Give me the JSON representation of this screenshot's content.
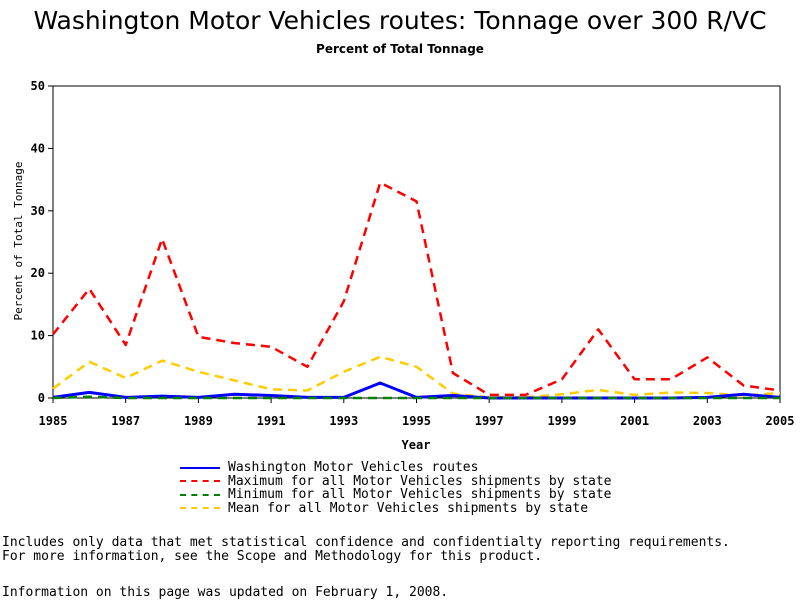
{
  "chart_data": {
    "type": "line",
    "title": "Washington Motor Vehicles routes: Tonnage over 300 R/VC",
    "subtitle": "Percent of Total Tonnage",
    "xlabel": "Year",
    "ylabel": "Percent of Total Tonnage",
    "xlim": [
      1985,
      2005
    ],
    "ylim": [
      0,
      50
    ],
    "x_ticks": [
      "1985",
      "1987",
      "1989",
      "1991",
      "1993",
      "1995",
      "1997",
      "1999",
      "2001",
      "2003",
      "2005"
    ],
    "y_ticks": [
      "0",
      "10",
      "20",
      "30",
      "40",
      "50"
    ],
    "x": [
      1985,
      1986,
      1987,
      1988,
      1989,
      1990,
      1991,
      1992,
      1993,
      1994,
      1995,
      1996,
      1997,
      1998,
      1999,
      2000,
      2001,
      2002,
      2003,
      2004,
      2005
    ],
    "grid": false,
    "legend_position": "bottom",
    "series": [
      {
        "name": "Washington Motor Vehicles routes",
        "color": "#0000ff",
        "style": "solid",
        "values": [
          0.1,
          0.9,
          0.1,
          0.3,
          0.1,
          0.6,
          0.4,
          0.1,
          0.1,
          2.4,
          0.1,
          0.4,
          0,
          0,
          0,
          0,
          0,
          0,
          0.1,
          0.6,
          0.1
        ]
      },
      {
        "name": "Maximum for all Motor Vehicles shipments by state",
        "color": "#ff0000",
        "style": "dashed",
        "values": [
          10.2,
          17.5,
          8.5,
          25.5,
          9.8,
          8.8,
          8.2,
          5.0,
          15.5,
          34.5,
          31.5,
          4.0,
          0.5,
          0.5,
          3.0,
          11.0,
          3.0,
          3.0,
          6.5,
          2.0,
          1.2
        ]
      },
      {
        "name": "Minimum for all Motor Vehicles shipments by state",
        "color": "#008000",
        "style": "dashed",
        "values": [
          0,
          0.2,
          0,
          0,
          0,
          0,
          0,
          0,
          0,
          0,
          0,
          0,
          0,
          0,
          0,
          0,
          0,
          0,
          0,
          0,
          0
        ]
      },
      {
        "name": "Mean for all Motor Vehicles shipments by state",
        "color": "#ffcc00",
        "style": "dashed",
        "values": [
          1.5,
          5.8,
          3.2,
          6.0,
          4.2,
          2.8,
          1.4,
          1.2,
          4.2,
          6.6,
          5.0,
          0.7,
          0.1,
          0.1,
          0.6,
          1.3,
          0.5,
          0.9,
          0.8,
          0.4,
          0.8
        ]
      }
    ]
  },
  "notes": {
    "line1": "Includes only data that met statistical confidence and confidentialty reporting requirements.",
    "line2": "For more information, see the Scope and Methodology for this product."
  },
  "update_text": "Information on this page was updated on February 1, 2008."
}
